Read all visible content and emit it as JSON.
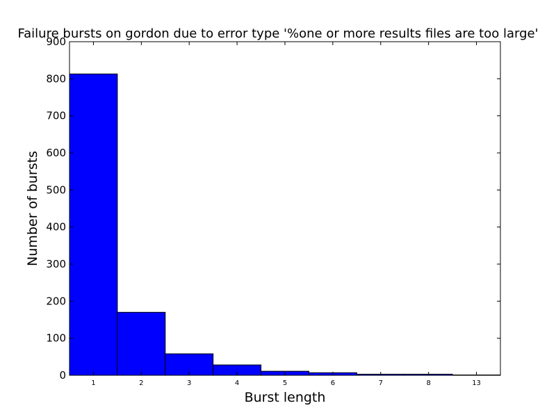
{
  "chart_data": {
    "type": "bar",
    "title": "Failure bursts on gordon due to error type '%one or more results files are too large'",
    "xlabel": "Burst length",
    "ylabel": "Number of bursts",
    "categories": [
      "1",
      "2",
      "3",
      "4",
      "5",
      "6",
      "7",
      "8",
      "13"
    ],
    "values": [
      813,
      170,
      58,
      28,
      11,
      7,
      3,
      3,
      1
    ],
    "ylim": [
      0,
      900
    ],
    "yticks": [
      "0",
      "100",
      "200",
      "300",
      "400",
      "500",
      "600",
      "700",
      "800",
      "900"
    ],
    "bar_color": "#0000ff",
    "grid": false,
    "legend": "none"
  }
}
